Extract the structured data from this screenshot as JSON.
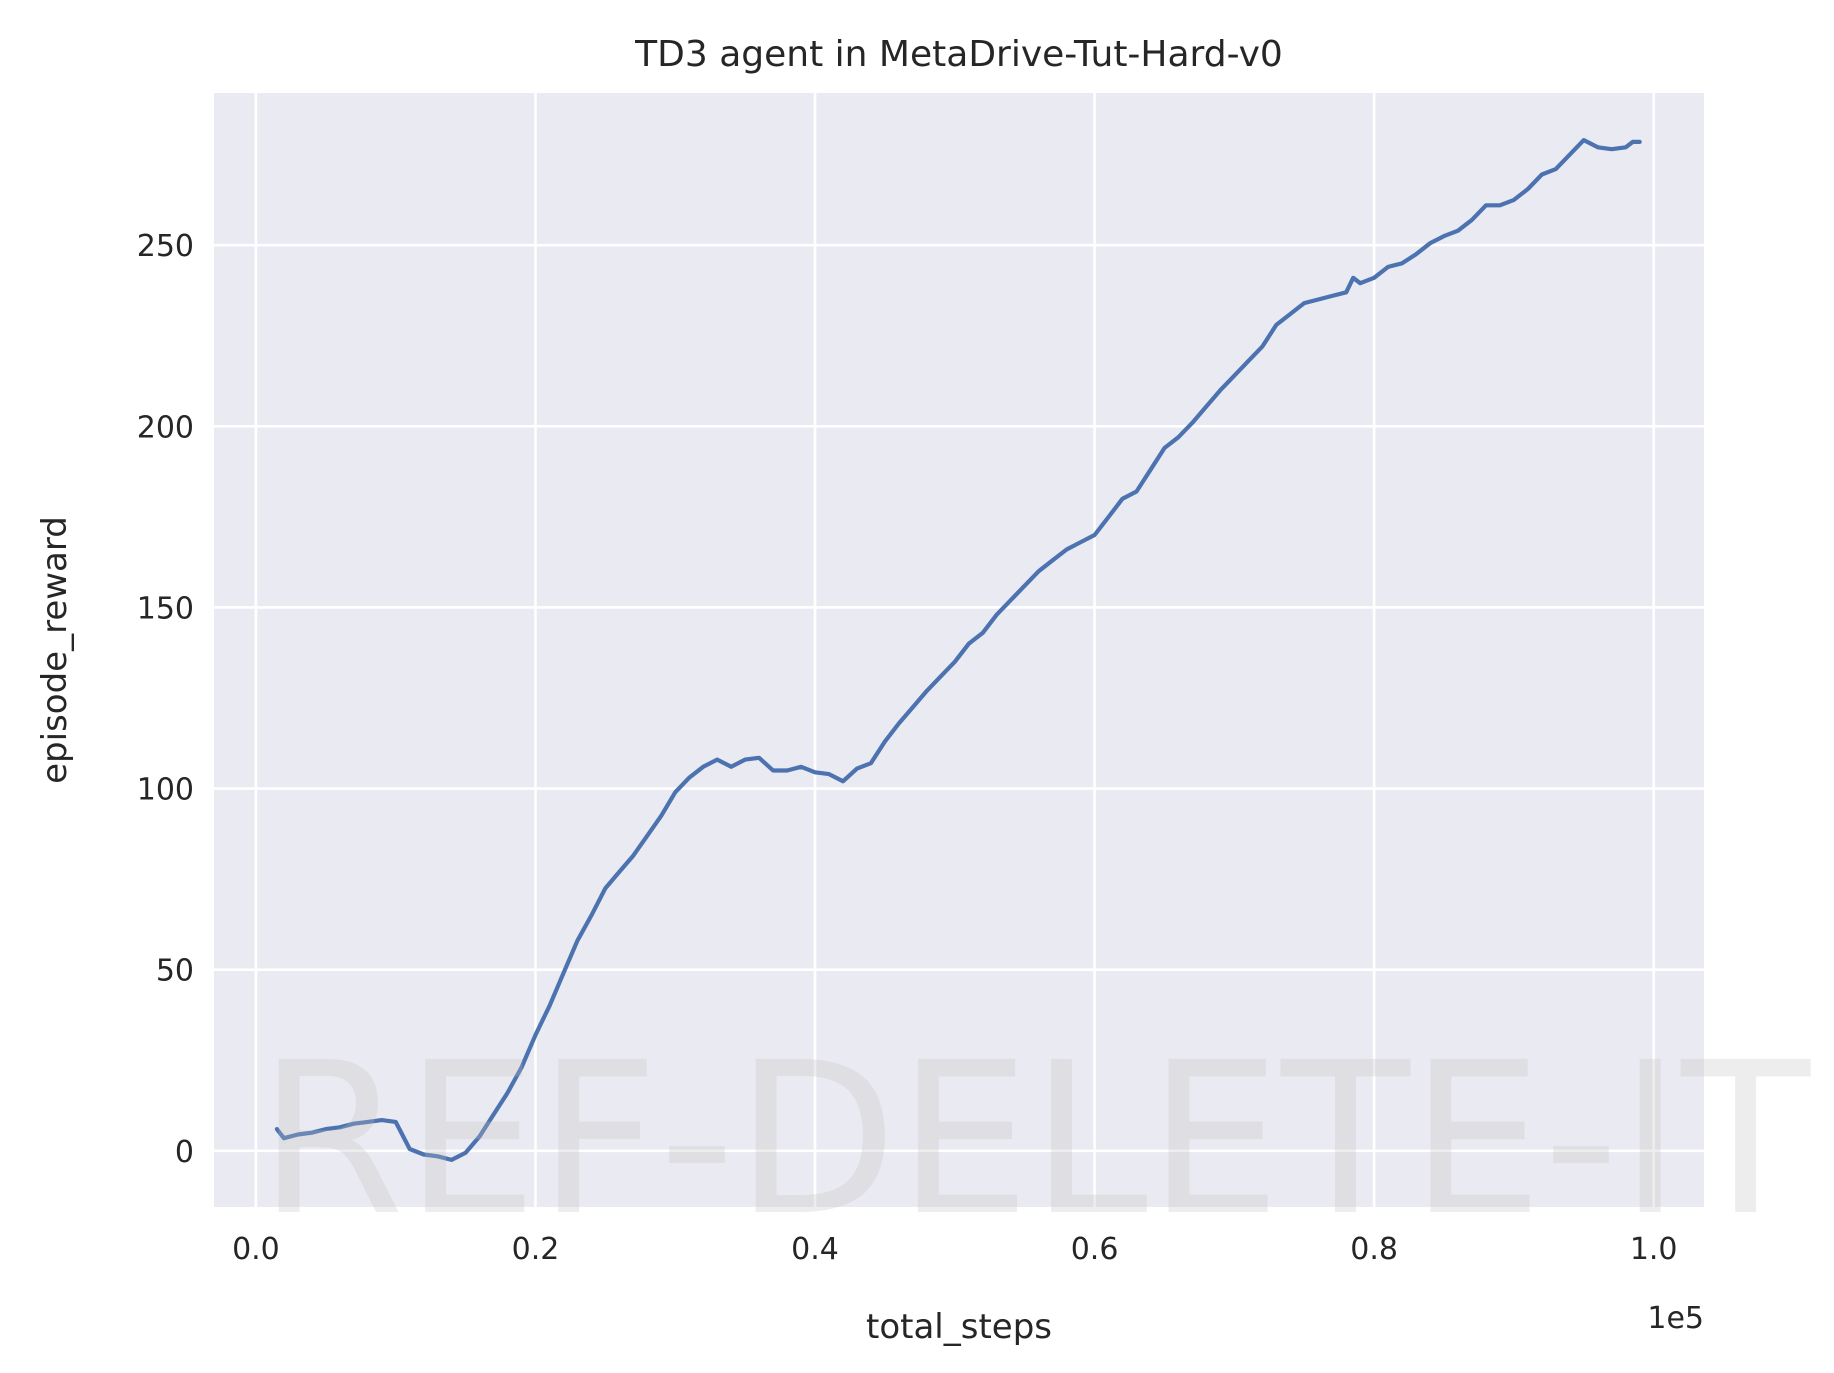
{
  "chart_data": {
    "type": "line",
    "title": "TD3 agent in MetaDrive-Tut-Hard-v0",
    "xlabel": "total_steps",
    "ylabel": "episode_reward",
    "x_offset_label": "1e5",
    "xlim": [
      -0.03,
      1.036
    ],
    "ylim": [
      -15.5,
      292
    ],
    "x_ticks": [
      0.0,
      0.2,
      0.4,
      0.6,
      0.8,
      1.0
    ],
    "x_tick_labels": [
      "0.0",
      "0.2",
      "0.4",
      "0.6",
      "0.8",
      "1.0"
    ],
    "y_ticks": [
      0,
      50,
      100,
      150,
      200,
      250
    ],
    "y_tick_labels": [
      "0",
      "50",
      "100",
      "150",
      "200",
      "250"
    ],
    "grid": true,
    "background": "#eaeaf2",
    "grid_color": "#ffffff",
    "series": [
      {
        "color": "#4c72b0",
        "x": [
          0.015,
          0.02,
          0.03,
          0.04,
          0.05,
          0.06,
          0.07,
          0.08,
          0.09,
          0.1,
          0.11,
          0.12,
          0.13,
          0.14,
          0.15,
          0.16,
          0.17,
          0.18,
          0.19,
          0.2,
          0.21,
          0.22,
          0.23,
          0.24,
          0.25,
          0.26,
          0.27,
          0.28,
          0.29,
          0.3,
          0.31,
          0.32,
          0.33,
          0.34,
          0.35,
          0.36,
          0.37,
          0.38,
          0.39,
          0.4,
          0.41,
          0.42,
          0.43,
          0.44,
          0.45,
          0.46,
          0.47,
          0.48,
          0.49,
          0.5,
          0.51,
          0.52,
          0.53,
          0.54,
          0.55,
          0.56,
          0.57,
          0.58,
          0.59,
          0.6,
          0.61,
          0.62,
          0.63,
          0.64,
          0.65,
          0.66,
          0.67,
          0.68,
          0.69,
          0.7,
          0.71,
          0.72,
          0.73,
          0.74,
          0.75,
          0.76,
          0.77,
          0.78,
          0.785,
          0.79,
          0.8,
          0.81,
          0.82,
          0.83,
          0.84,
          0.85,
          0.86,
          0.87,
          0.88,
          0.89,
          0.9,
          0.91,
          0.92,
          0.93,
          0.94,
          0.95,
          0.96,
          0.97,
          0.98,
          0.985,
          0.99
        ],
        "y": [
          6,
          3.5,
          4.5,
          5,
          6,
          6.5,
          7.5,
          8,
          8.5,
          8,
          0.5,
          -1,
          -1.5,
          -2.5,
          -0.5,
          4,
          10,
          16,
          23,
          32,
          40,
          49,
          58,
          65,
          72.5,
          77,
          81.5,
          87,
          92.5,
          99,
          103,
          106,
          108,
          106,
          108,
          108.5,
          105,
          105,
          106,
          104.5,
          104,
          102,
          105.5,
          107,
          113,
          118,
          122.5,
          127,
          131,
          135,
          140,
          143,
          148,
          152,
          156,
          160,
          163,
          166,
          168,
          170,
          175,
          180,
          182,
          188,
          194,
          197,
          201,
          205.5,
          210,
          214,
          218,
          222,
          228,
          231,
          234,
          235,
          236,
          237,
          241,
          239.5,
          241,
          244,
          245,
          247.5,
          250.5,
          252.5,
          254,
          257,
          261,
          261,
          262.5,
          265.5,
          269.5,
          271,
          275,
          279,
          277,
          276.5,
          277,
          278.5,
          278.5
        ]
      }
    ]
  },
  "watermark": "REF-DELETE-IT"
}
